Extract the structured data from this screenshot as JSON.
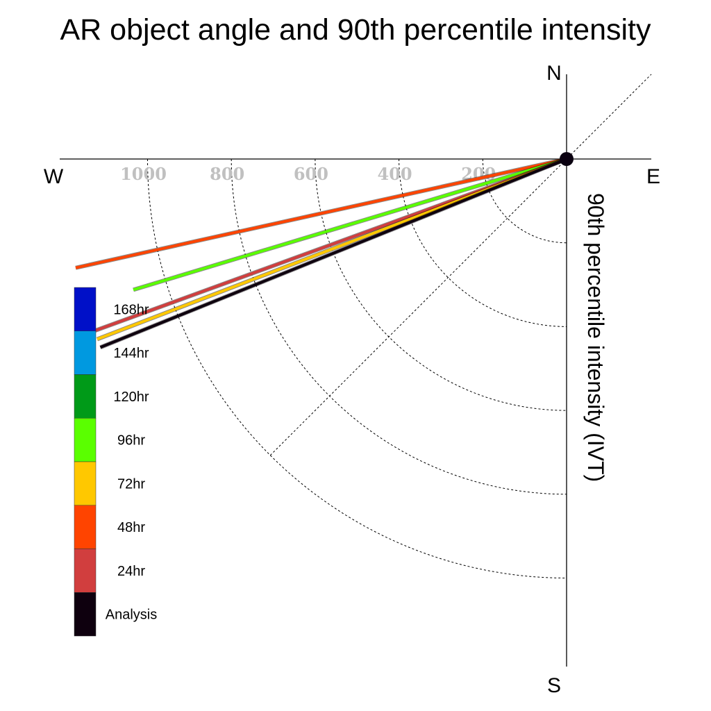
{
  "chart_data": {
    "type": "polar-quadrant",
    "title": "AR object angle and 90th percentile intensity",
    "ylabel": "90th percentile intensity (IVT)",
    "compass": {
      "north": "N",
      "south": "S",
      "east": "E",
      "west": "W"
    },
    "radial_ticks": [
      "200",
      "400",
      "600",
      "800",
      "1000"
    ],
    "radial_tick_values": [
      200,
      400,
      600,
      800,
      1000
    ],
    "radial_max": 1200,
    "grid": true,
    "legend_position": "left",
    "legend": [
      {
        "label": "168hr",
        "color": "#0010c8"
      },
      {
        "label": "144hr",
        "color": "#0099e0"
      },
      {
        "label": "120hr",
        "color": "#009a18"
      },
      {
        "label": "96hr",
        "color": "#5aff00"
      },
      {
        "label": "72hr",
        "color": "#ffc800"
      },
      {
        "label": "48hr",
        "color": "#ff4400"
      },
      {
        "label": "24hr",
        "color": "#d13e3e"
      },
      {
        "label": "Analysis",
        "color": "#0e000e"
      }
    ],
    "series": [
      {
        "name": "48hr",
        "angle_deg": 192.5,
        "intensity": 1200,
        "color": "#ff4400"
      },
      {
        "name": "96hr",
        "angle_deg": 196.8,
        "intensity": 1080,
        "color": "#5aff00"
      },
      {
        "name": "24hr",
        "angle_deg": 200.0,
        "intensity": 1200,
        "color": "#d13e3e"
      },
      {
        "name": "72hr",
        "angle_deg": 201.0,
        "intensity": 1200,
        "color": "#ffc800"
      },
      {
        "name": "Analysis",
        "angle_deg": 202.0,
        "intensity": 1200,
        "color": "#0e000e"
      }
    ]
  }
}
